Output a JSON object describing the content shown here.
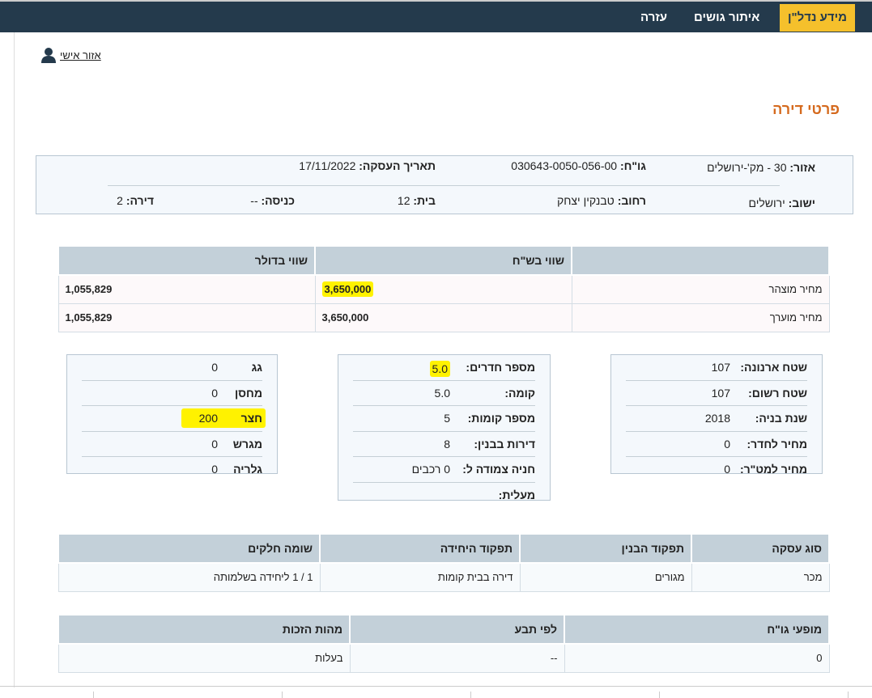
{
  "nav": {
    "items": [
      "מידע נדל\"ן",
      "איתור גושים",
      "עזרה"
    ],
    "active": "מידע נדל\"ן"
  },
  "personal": {
    "label": "אזור אישי",
    "icon": "user-icon"
  },
  "page_title": "פרטי דירה",
  "info": {
    "area_label": "אזור:",
    "area_value": "30 - מק'-ירושלים",
    "gush_label": "גו\"ח:",
    "gush_value": "030643-0050-056-00",
    "date_label": "תאריך העסקה:",
    "date_value": "17/11/2022",
    "city_label": "ישוב:",
    "city_value": "ירושלים",
    "street_label": "רחוב:",
    "street_value": "טבנקין יצחק",
    "house_label": "בית:",
    "house_value": "12",
    "entrance_label": "כניסה:",
    "entrance_value": "--",
    "apt_label": "דירה:",
    "apt_value": "2"
  },
  "price": {
    "headers": [
      "",
      "שווי בש\"ח",
      "שווי בדולר"
    ],
    "rows": [
      [
        "מחיר מוצהר",
        "3,650,000",
        "1,055,829"
      ],
      [
        "מחיר מוערך",
        "3,650,000",
        "1,055,829"
      ]
    ]
  },
  "box_right": [
    [
      "שטח ארנונה:",
      "107"
    ],
    [
      "שטח רשום:",
      "107"
    ],
    [
      "שנת בניה:",
      "2018"
    ],
    [
      "מחיר לחדר:",
      "0"
    ],
    [
      "מחיר למט\"ר:",
      "0"
    ]
  ],
  "box_mid": [
    [
      "מספר חדרים:",
      "5.0"
    ],
    [
      "קומה:",
      "5.0"
    ],
    [
      "מספר קומות:",
      "5"
    ],
    [
      "דירות בבנין:",
      "8"
    ],
    [
      "חניה צמודה ל:",
      "0 רכבים"
    ],
    [
      "מעלית:",
      ""
    ]
  ],
  "box_left": [
    [
      "גג",
      "0"
    ],
    [
      "מחסן",
      "0"
    ],
    [
      "חצר",
      "200"
    ],
    [
      "מגרש",
      "0"
    ],
    [
      "גלריה",
      "0"
    ]
  ],
  "deal": {
    "headers": [
      "סוג עסקה",
      "תפקוד הבנין",
      "תפקוד היחידה",
      "שומה חלקים"
    ],
    "row": [
      "מכר",
      "מגורים",
      "דירה בבית קומות",
      "1 / 1 ליחידה בשלמותה"
    ]
  },
  "rights": {
    "headers": [
      "מופעי גו\"ח",
      "לפי תבע",
      "מהות הזכות"
    ],
    "row": [
      "0",
      "--",
      "בעלות"
    ]
  },
  "colors": {
    "nav": "#243a4c",
    "active": "#f5c02c",
    "title": "#d56a1e",
    "highlight": "#fff200"
  }
}
